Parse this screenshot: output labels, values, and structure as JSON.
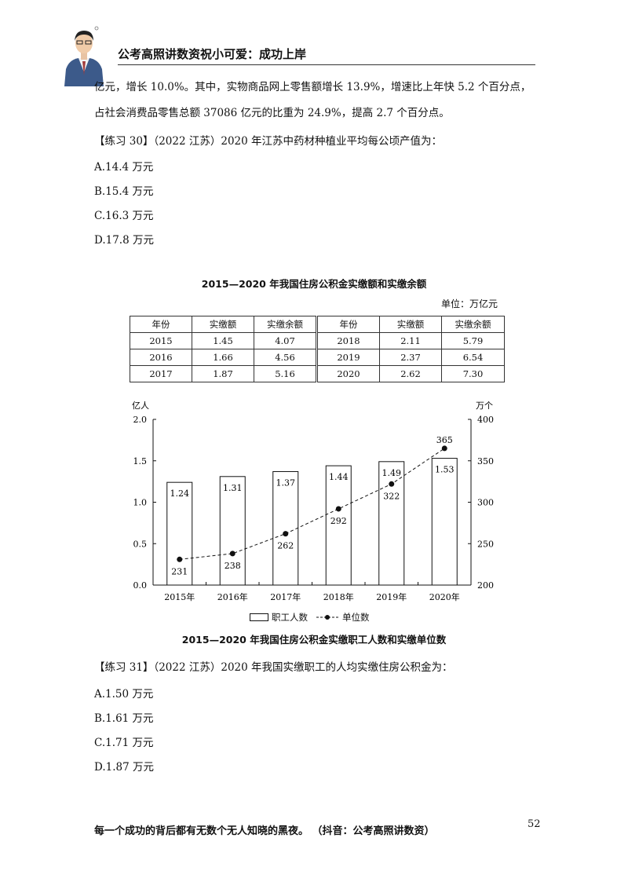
{
  "header": {
    "title": "公考高照讲数资祝小可爱：成功上岸"
  },
  "intro": {
    "line1": "亿元，增长 10.0%。其中，实物商品网上零售额增长 13.9%，增速比上年快 5.2 个百分点，",
    "line2": "占社会消费品零售总额 37086 亿元的比重为 24.9%，提高 2.7 个百分点。"
  },
  "q30": {
    "prompt": "【练习 30】（2022 江苏）2020 年江苏中药材种植业平均每公顷产值为：",
    "options": [
      "A.14.4 万元",
      "B.15.4 万元",
      "C.16.3 万元",
      "D.17.8 万元"
    ]
  },
  "table": {
    "title": "2015—2020 年我国住房公积金实缴额和实缴余额",
    "unit": "单位：万亿元",
    "headers": [
      "年份",
      "实缴额",
      "实缴余额",
      "年份",
      "实缴额",
      "实缴余额"
    ],
    "rows": [
      [
        "2015",
        "1.45",
        "4.07",
        "2018",
        "2.11",
        "5.79"
      ],
      [
        "2016",
        "1.66",
        "4.56",
        "2019",
        "2.37",
        "6.54"
      ],
      [
        "2017",
        "1.87",
        "5.16",
        "2020",
        "2.62",
        "7.30"
      ]
    ]
  },
  "chart_data": {
    "type": "bar",
    "title": "2015—2020 年我国住房公积金实缴职工人数和实缴单位数",
    "categories": [
      "2015年",
      "2016年",
      "2017年",
      "2018年",
      "2019年",
      "2020年"
    ],
    "ylabel": "亿人",
    "y2label": "万个",
    "ylim": [
      0,
      2.0
    ],
    "y2lim": [
      200,
      400
    ],
    "yticks": [
      "0.0",
      "0.5",
      "1.0",
      "1.5",
      "2.0"
    ],
    "y2ticks": [
      "200",
      "250",
      "300",
      "350",
      "400"
    ],
    "series": [
      {
        "name": "职工人数",
        "type": "bar",
        "axis": "left",
        "values": [
          1.24,
          1.31,
          1.37,
          1.44,
          1.49,
          1.53
        ]
      },
      {
        "name": "单位数",
        "type": "line",
        "axis": "right",
        "values": [
          231,
          238,
          262,
          292,
          322,
          365
        ]
      }
    ],
    "legend": "bottom",
    "grid": false
  },
  "q31": {
    "prompt": "【练习 31】（2022 江苏）2020 年我国实缴职工的人均实缴住房公积金为：",
    "options": [
      "A.1.50 万元",
      "B.1.61 万元",
      "C.1.71 万元",
      "D.1.87 万元"
    ]
  },
  "footer": {
    "motto": "每一个成功的背后都有无数个无人知晓的黑夜。 （抖音：公考高照讲数资）",
    "page": "52"
  },
  "icons": {
    "avatar": "presenter-avatar"
  }
}
